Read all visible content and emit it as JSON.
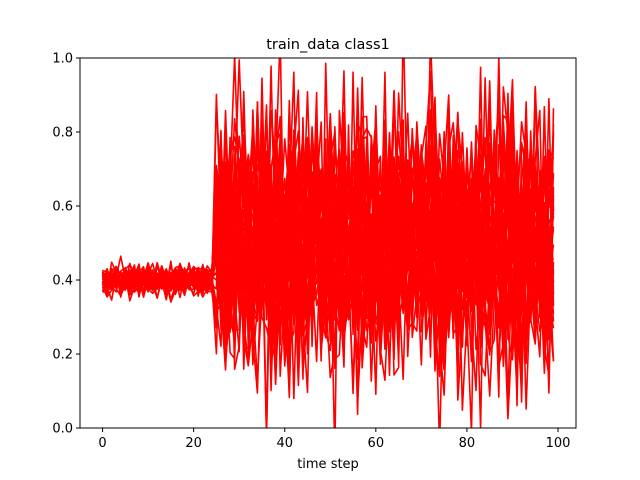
{
  "chart_data": {
    "type": "line",
    "title": "train_data class1",
    "xlabel": "time step",
    "ylabel": "",
    "xlim": [
      -4.95,
      103.95
    ],
    "ylim": [
      0,
      1.0
    ],
    "xticks": [
      0,
      20,
      40,
      60,
      80,
      100
    ],
    "xtick_labels": [
      "0",
      "20",
      "40",
      "60",
      "80",
      "100"
    ],
    "yticks": [
      0.0,
      0.2,
      0.4,
      0.6,
      0.8,
      1.0
    ],
    "ytick_labels": [
      "0.0",
      "0.2",
      "0.4",
      "0.6",
      "0.8",
      "1.0"
    ],
    "grid": false,
    "legend": "none",
    "line_color": "#ff0000",
    "series_count": 40,
    "time_steps": 100,
    "phase1": {
      "end_step": 24,
      "center": 0.4,
      "amplitude": 0.03
    },
    "phase2": {
      "start_step": 25,
      "center": 0.5,
      "amplitude": 0.17
    }
  }
}
